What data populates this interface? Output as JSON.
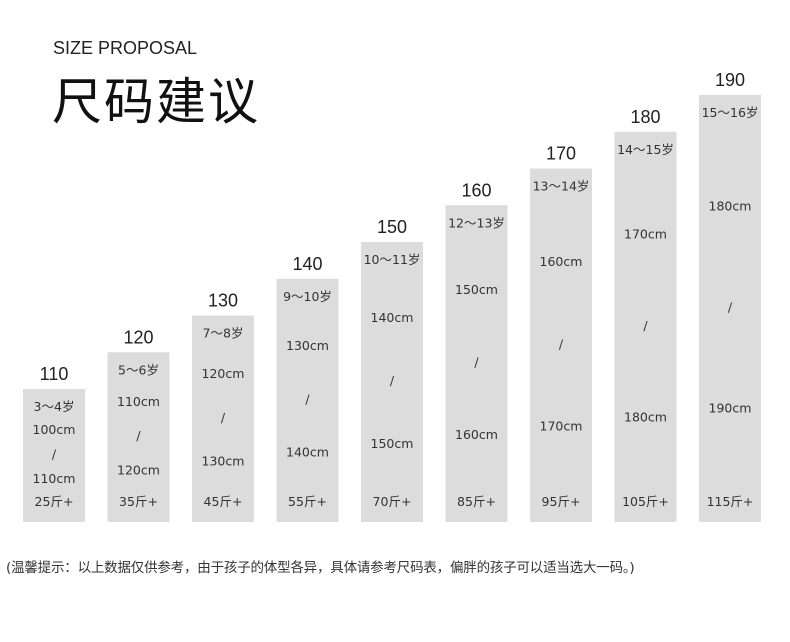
{
  "header": {
    "subtitle": "SIZE PROPOSAL",
    "title": "尺码建议"
  },
  "note": "(温馨提示：以上数据仅供参考，由于孩子的体型各异，具体请参考尺码表，偏胖的孩子可以适当选大一码。)",
  "colors": {
    "bar": "#dcdcdc",
    "text": "#222222",
    "background": "#ffffff"
  },
  "chart_data": {
    "type": "bar",
    "categories": [
      "110",
      "120",
      "130",
      "140",
      "150",
      "160",
      "170",
      "180",
      "190"
    ],
    "values": [
      110,
      120,
      130,
      140,
      150,
      160,
      170,
      180,
      190
    ],
    "ages": [
      "3～4岁",
      "5～6岁",
      "7～8岁",
      "9～10岁",
      "10～11岁",
      "12～13岁",
      "13～14岁",
      "14～15岁",
      "15～16岁"
    ],
    "height_min": [
      "100cm",
      "110cm",
      "120cm",
      "130cm",
      "140cm",
      "150cm",
      "160cm",
      "170cm",
      "180cm"
    ],
    "separator": "/",
    "height_max": [
      "110cm",
      "120cm",
      "130cm",
      "140cm",
      "150cm",
      "160cm",
      "170cm",
      "180cm",
      "190cm"
    ],
    "weights": [
      "25斤+",
      "35斤+",
      "45斤+",
      "55斤+",
      "70斤+",
      "85斤+",
      "95斤+",
      "105斤+",
      "115斤+"
    ],
    "ylim": [
      0,
      190
    ],
    "grid": false,
    "legend": "none"
  }
}
